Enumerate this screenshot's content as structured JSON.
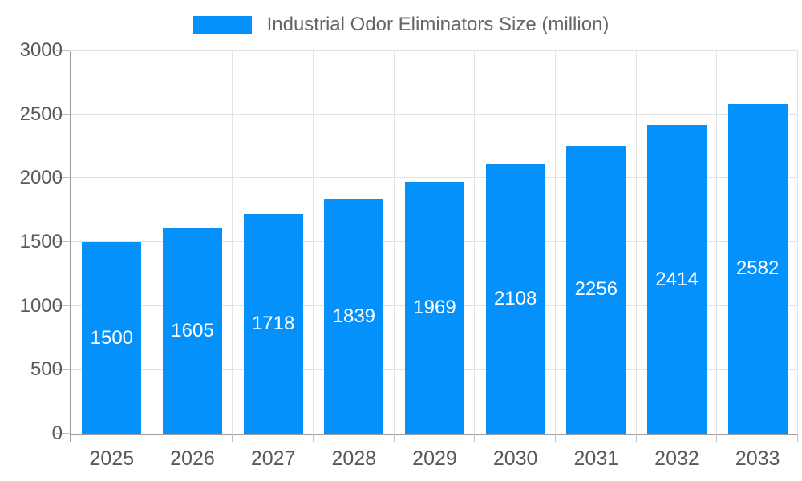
{
  "chart_data": {
    "type": "bar",
    "title": "Industrial Odor Eliminators Size (million)",
    "series_name": "Industrial Odor Eliminators Size (million)",
    "categories": [
      "2025",
      "2026",
      "2027",
      "2028",
      "2029",
      "2030",
      "2031",
      "2032",
      "2033"
    ],
    "values": [
      1500,
      1605,
      1718,
      1839,
      1969,
      2108,
      2256,
      2414,
      2582
    ],
    "xlabel": "",
    "ylabel": "",
    "ylim": [
      0,
      3000
    ],
    "yticks": [
      0,
      500,
      1000,
      1500,
      2000,
      2500,
      3000
    ],
    "grid": true,
    "legend_position": "top-center",
    "value_labels": "inside-center"
  },
  "colors": {
    "bar": "#0591fb",
    "grid": "#e2e2e2",
    "axis": "#9e9e9e",
    "tick": "#c2c2c2",
    "axis_text": "#58595b",
    "legend_text": "#666666",
    "value_text": "#ffffff",
    "background": "#ffffff"
  }
}
